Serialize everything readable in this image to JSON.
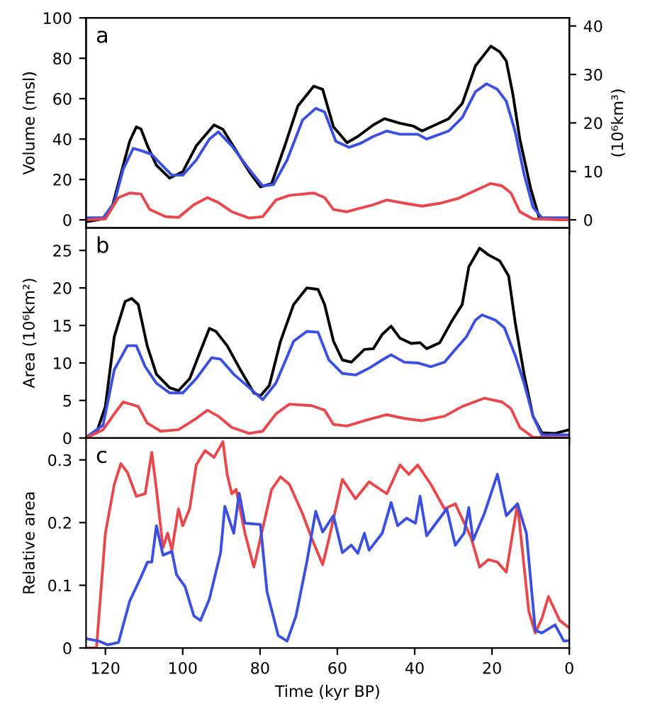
{
  "chart_data": [
    {
      "type": "line",
      "ylabel": "Volume (msl)",
      "y2label": "(10⁶km³)",
      "annotations": [
        "a"
      ],
      "xlim": [
        125,
        0
      ],
      "xticks": [
        120,
        100,
        80,
        60,
        40,
        20,
        0
      ],
      "ylim": [
        -4,
        100
      ],
      "yticks": [
        0,
        20,
        40,
        60,
        80,
        100
      ],
      "y2lim": [
        -1.67,
        41.67
      ],
      "y2ticks": [
        0,
        10,
        20,
        30,
        40
      ],
      "tick_labels": "y",
      "grid": false,
      "legend": false,
      "series": [
        {
          "color": "#000000",
          "x": [
            125,
            120.6,
            118.3,
            116.0,
            113.7,
            112.0,
            110.8,
            109.1,
            106.8,
            103.4,
            100.0,
            96.5,
            91.9,
            89.6,
            86.2,
            82.8,
            79.9,
            77.0,
            73.6,
            70.2,
            66.1,
            63.8,
            61.0,
            57.5,
            54.7,
            50.7,
            47.8,
            43.8,
            40.3,
            38.1,
            35.8,
            31.2,
            27.7,
            24.3,
            20.3,
            18.0,
            16.3,
            14.6,
            12.8,
            10.0,
            7.7,
            0
          ],
          "values": [
            -1,
            0.5,
            6,
            22.6,
            39,
            46,
            45,
            36.6,
            27,
            20.7,
            23.8,
            36.6,
            47,
            44.8,
            34.3,
            23.8,
            16.3,
            18,
            36.6,
            56.4,
            66.2,
            64.6,
            46,
            38.2,
            41.3,
            47,
            50.1,
            47.8,
            46.4,
            44,
            46,
            50.1,
            57.6,
            76.2,
            86,
            83.2,
            78.6,
            62.2,
            40,
            15.6,
            0.5,
            0
          ]
        },
        {
          "color": "#3b4fe0",
          "x": [
            125,
            120.6,
            117.7,
            115.4,
            112.8,
            110.8,
            108.0,
            105.7,
            102.8,
            100.0,
            96.5,
            93.1,
            90.8,
            87.3,
            82.8,
            79.3,
            76.5,
            73.0,
            69.0,
            65.6,
            63.3,
            60.4,
            57.0,
            54.1,
            50.7,
            47.2,
            43.8,
            39.2,
            36.9,
            31.2,
            27.7,
            24.3,
            21.4,
            18.6,
            16.3,
            14.0,
            11.7,
            9.4,
            7.1,
            0
          ],
          "values": [
            1,
            1,
            8.6,
            25,
            35.4,
            34.3,
            32.4,
            27.7,
            22.1,
            22.1,
            29.6,
            40,
            43.6,
            36.6,
            25,
            16.8,
            17.5,
            29.6,
            49.4,
            55.2,
            53.4,
            38.9,
            35.9,
            37.8,
            41.3,
            44,
            42.4,
            42.4,
            40,
            44,
            50.6,
            63.4,
            67.4,
            64.6,
            58.7,
            43.6,
            22.6,
            6.3,
            1,
            1
          ]
        },
        {
          "color": "#e8474b",
          "x": [
            125,
            120,
            116.6,
            113.7,
            110.8,
            108.5,
            104.5,
            101.1,
            97.1,
            93.6,
            90.8,
            87.3,
            82.8,
            79.3,
            75.9,
            72.4,
            66.1,
            63.3,
            61.0,
            57.5,
            54.1,
            50.7,
            47.2,
            42.6,
            38.1,
            33.5,
            28.9,
            24.3,
            20.3,
            17.4,
            15.1,
            12.8,
            9.4,
            0
          ],
          "values": [
            0,
            0.5,
            11,
            13.3,
            12.8,
            5.1,
            1.6,
            1.2,
            7.5,
            11,
            8.6,
            4,
            0.9,
            1.6,
            9.8,
            12.1,
            13.3,
            11,
            5.1,
            4,
            5.8,
            7.5,
            9.8,
            8.2,
            6.8,
            8.2,
            10.5,
            14.5,
            18,
            16.8,
            13.3,
            4,
            0.5,
            0
          ]
        }
      ]
    },
    {
      "type": "line",
      "ylabel": "Area (10⁶km²)",
      "annotations": [
        "b"
      ],
      "xlim": [
        125,
        0
      ],
      "xticks": [
        120,
        100,
        80,
        60,
        40,
        20,
        0
      ],
      "ylim": [
        0,
        28
      ],
      "yticks": [
        0,
        5,
        10,
        15,
        20,
        25
      ],
      "tick_labels": "y",
      "grid": false,
      "legend": false,
      "series": [
        {
          "color": "#000000",
          "x": [
            125,
            122.3,
            120,
            117.7,
            114.9,
            113.2,
            111.5,
            109.2,
            106.8,
            103.4,
            101.1,
            98.2,
            95.4,
            93.1,
            91.4,
            88.5,
            85.1,
            81.6,
            79.9,
            77.6,
            74.7,
            71.3,
            67.9,
            65.0,
            63.3,
            61.0,
            58.7,
            56.4,
            53.0,
            50.7,
            48.4,
            46.1,
            43.8,
            40.9,
            38.6,
            36.9,
            33.5,
            30.6,
            27.7,
            26.0,
            23.2,
            20.9,
            18.0,
            15.7,
            14.0,
            11.7,
            9.4,
            7.1,
            3.7,
            0
          ],
          "values": [
            0.1,
            0.7,
            4.2,
            13.5,
            18.2,
            18.6,
            17.8,
            12.3,
            8.5,
            6.7,
            6.3,
            7.9,
            11.6,
            14.6,
            14.2,
            12.3,
            9.1,
            6,
            5.6,
            7,
            12.9,
            17.8,
            20,
            19.8,
            17.8,
            12.9,
            10.4,
            10.1,
            11.8,
            11.9,
            13.8,
            14.9,
            13.3,
            12.6,
            12.7,
            11.9,
            12.7,
            15.4,
            17.8,
            22.8,
            25.3,
            24.4,
            23.6,
            21.6,
            15.4,
            8.5,
            2.9,
            0.7,
            0.6,
            1.1
          ]
        },
        {
          "color": "#3b4fe0",
          "x": [
            125,
            120.6,
            117.7,
            114.3,
            112.0,
            109.7,
            106.8,
            103.4,
            100.0,
            96.5,
            92.5,
            90.2,
            86.8,
            82.8,
            79.3,
            75.9,
            71.3,
            67.9,
            65.0,
            62.2,
            58.7,
            55.3,
            51.8,
            48.4,
            46.1,
            42.7,
            39.2,
            35.8,
            32.3,
            29.5,
            26.6,
            24.3,
            22.6,
            19.1,
            16.8,
            14.0,
            11.7,
            9.4,
            7.1,
            0
          ],
          "values": [
            0.1,
            1.7,
            9.1,
            12.3,
            12.3,
            9.5,
            7.3,
            6,
            6,
            7.9,
            10.7,
            10.5,
            8.5,
            6.7,
            5.1,
            7.3,
            12.9,
            14.2,
            14.1,
            10.4,
            8.6,
            8.4,
            9.3,
            10.4,
            11.1,
            10.1,
            10,
            9.5,
            10.1,
            11.8,
            13.5,
            15.7,
            16.4,
            15.7,
            14.7,
            11,
            7.3,
            2.9,
            0.4,
            0.4
          ]
        },
        {
          "color": "#e8474b",
          "x": [
            125,
            120.6,
            117.7,
            115.4,
            111.5,
            109.2,
            105.7,
            101.1,
            96.5,
            93.6,
            90.8,
            87.3,
            82.8,
            79.3,
            75.9,
            72.4,
            66.6,
            63.3,
            61.0,
            57.5,
            53.0,
            47.2,
            42.7,
            38.1,
            32.3,
            27.7,
            22.0,
            17.4,
            15.1,
            12.8,
            9.4,
            0
          ],
          "values": [
            0,
            1.1,
            3.2,
            4.8,
            4.2,
            2,
            0.9,
            1.1,
            2.6,
            3.7,
            2.9,
            1.4,
            0.6,
            0.9,
            3.2,
            4.5,
            4.3,
            3.7,
            1.8,
            1.6,
            2.3,
            3.1,
            2.6,
            2.3,
            2.9,
            4.2,
            5.3,
            4.8,
            3.9,
            1.4,
            0.1,
            0
          ]
        }
      ]
    },
    {
      "type": "line",
      "ylabel": "Relative area",
      "xlabel": "Time (kyr BP)",
      "annotations": [
        "c"
      ],
      "xlim": [
        125,
        0
      ],
      "xticks": [
        120,
        100,
        80,
        60,
        40,
        20,
        0
      ],
      "ylim": [
        0,
        0.335
      ],
      "yticks": [
        0,
        0.1,
        0.2,
        0.3
      ],
      "grid": false,
      "legend": false,
      "series": [
        {
          "color": "#e8474b",
          "x": [
            125,
            122.3,
            120,
            117.7,
            116.0,
            114.3,
            112.0,
            109.7,
            108.0,
            106.8,
            105.1,
            103.9,
            102.8,
            101.1,
            100.0,
            98.2,
            96.5,
            94.2,
            91.9,
            89.6,
            88.5,
            87.3,
            86.2,
            83.9,
            81.6,
            79.3,
            77.0,
            74.7,
            72.4,
            69.0,
            66.7,
            63.8,
            62.1,
            58.7,
            55.3,
            51.8,
            47.2,
            43.8,
            41.5,
            39.2,
            35.8,
            32.3,
            29.5,
            25.4,
            23.2,
            20.9,
            18.6,
            16.3,
            13.4,
            10.5,
            8.8,
            7.1,
            5.4,
            2.5,
            0
          ],
          "values": [
            0,
            0,
            0.183,
            0.261,
            0.294,
            0.28,
            0.242,
            0.246,
            0.312,
            0.253,
            0.16,
            0.183,
            0.156,
            0.222,
            0.195,
            0.222,
            0.292,
            0.315,
            0.304,
            0.329,
            0.277,
            0.246,
            0.253,
            0.183,
            0.129,
            0.191,
            0.253,
            0.273,
            0.261,
            0.214,
            0.176,
            0.133,
            0.176,
            0.269,
            0.238,
            0.265,
            0.246,
            0.292,
            0.277,
            0.292,
            0.261,
            0.222,
            0.23,
            0.176,
            0.129,
            0.141,
            0.137,
            0.121,
            0.23,
            0.059,
            0.024,
            0.047,
            0.082,
            0.044,
            0.032
          ]
        },
        {
          "color": "#3b4fe0",
          "x": [
            125,
            121.7,
            119.4,
            116.6,
            113.7,
            110.8,
            109.1,
            108.0,
            106.8,
            105.1,
            102.8,
            101.6,
            99.4,
            97.1,
            95.4,
            93.1,
            90.2,
            89.1,
            86.8,
            85.4,
            83.9,
            79.9,
            78.2,
            75.3,
            73.0,
            70.7,
            67.9,
            65.6,
            63.8,
            61.0,
            58.7,
            56.4,
            54.7,
            53.0,
            51.8,
            48.4,
            46.1,
            44.4,
            42.1,
            39.8,
            38.6,
            36.9,
            34.0,
            31.7,
            29.5,
            27.2,
            26.0,
            24.9,
            22.0,
            18.6,
            16.3,
            13.4,
            11.1,
            8.8,
            7.1,
            3.7,
            1.4,
            0
          ],
          "values": [
            0.015,
            0.011,
            0.005,
            0.009,
            0.075,
            0.113,
            0.137,
            0.137,
            0.195,
            0.148,
            0.154,
            0.117,
            0.098,
            0.051,
            0.044,
            0.078,
            0.152,
            0.226,
            0.183,
            0.247,
            0.199,
            0.197,
            0.09,
            0.02,
            0.011,
            0.051,
            0.137,
            0.218,
            0.185,
            0.211,
            0.152,
            0.164,
            0.151,
            0.183,
            0.156,
            0.183,
            0.232,
            0.195,
            0.207,
            0.199,
            0.242,
            0.179,
            0.203,
            0.222,
            0.164,
            0.183,
            0.224,
            0.172,
            0.214,
            0.277,
            0.211,
            0.23,
            0.183,
            0.028,
            0.024,
            0.037,
            0.011,
            0.012
          ]
        }
      ]
    }
  ]
}
